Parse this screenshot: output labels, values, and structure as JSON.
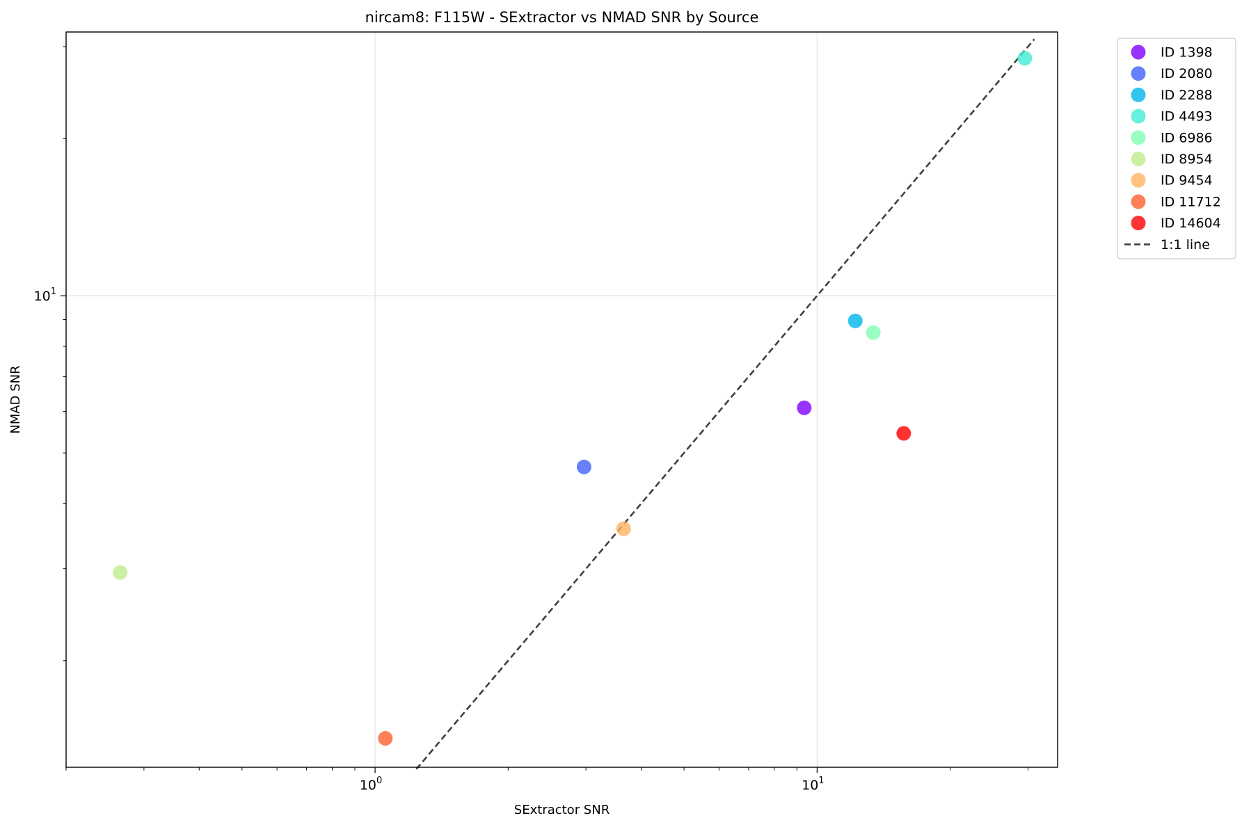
{
  "chart_data": {
    "type": "scatter",
    "title": "nircam8: F115W - SExtractor vs NMAD SNR by Source",
    "xlabel": "SExtractor SNR",
    "ylabel": "NMAD SNR",
    "xscale": "log",
    "yscale": "log",
    "xlim": [
      0.2,
      35
    ],
    "ylim": [
      1.25,
      32
    ],
    "grid": true,
    "legend_position": "outside upper right",
    "x_major_ticks": [
      {
        "value": 1,
        "base": "10",
        "exp": "0"
      },
      {
        "value": 10,
        "base": "10",
        "exp": "1"
      }
    ],
    "y_major_ticks": [
      {
        "value": 10,
        "base": "10",
        "exp": "1"
      }
    ],
    "series": [
      {
        "name": "ID 1398",
        "color": "#8000ff",
        "x": 9.35,
        "y": 6.1
      },
      {
        "name": "ID 2080",
        "color": "#4062fa",
        "x": 2.97,
        "y": 4.7
      },
      {
        "name": "ID 2288",
        "color": "#00b5eb",
        "x": 12.2,
        "y": 8.95
      },
      {
        "name": "ID 4493",
        "color": "#40ecd4",
        "x": 29.5,
        "y": 28.5
      },
      {
        "name": "ID 6986",
        "color": "#80ffb4",
        "x": 13.4,
        "y": 8.5
      },
      {
        "name": "ID 8954",
        "color": "#c0eb8d",
        "x": 0.265,
        "y": 2.95
      },
      {
        "name": "ID 9454",
        "color": "#ffb360",
        "x": 3.65,
        "y": 3.58
      },
      {
        "name": "ID 11712",
        "color": "#ff6230",
        "x": 1.055,
        "y": 1.42
      },
      {
        "name": "ID 14604",
        "color": "#ff0000",
        "x": 15.7,
        "y": 5.45
      }
    ],
    "reference_line": {
      "name": "1:1 line",
      "x": [
        1.24,
        31
      ],
      "y": [
        1.24,
        31
      ],
      "color": "#404040",
      "style": "dashed"
    }
  }
}
